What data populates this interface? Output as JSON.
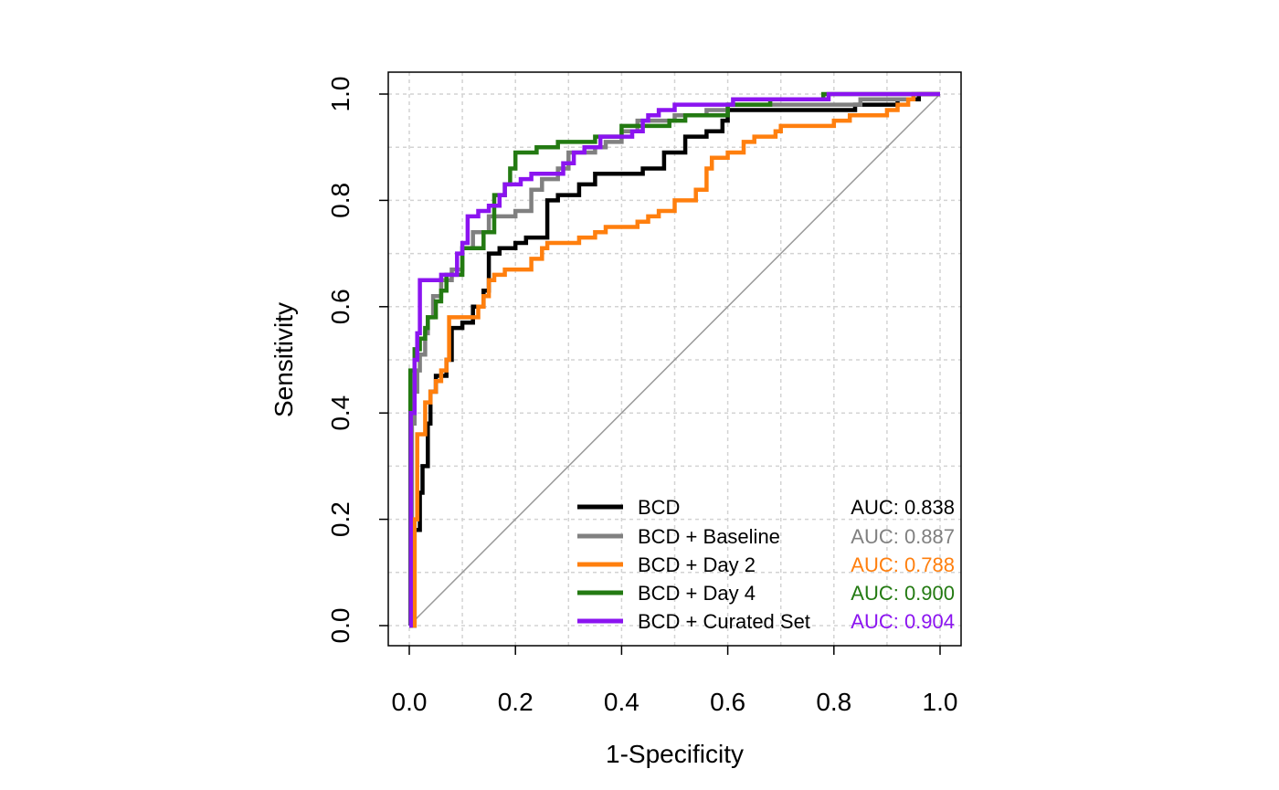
{
  "chart_data": {
    "type": "line",
    "xlabel": "1-Specificity",
    "ylabel": "Sensitivity",
    "xlim": [
      0,
      1
    ],
    "ylim": [
      0,
      1
    ],
    "x_ticks": [
      "0.0",
      "0.2",
      "0.4",
      "0.6",
      "0.8",
      "1.0"
    ],
    "y_ticks": [
      "0.0",
      "0.2",
      "0.4",
      "0.6",
      "0.8",
      "1.0"
    ],
    "grid": true,
    "legend_position": "bottom-right",
    "reference_line": {
      "from": [
        0,
        0
      ],
      "to": [
        1,
        1
      ],
      "color": "#999999"
    },
    "series": [
      {
        "name": "BCD",
        "auc_label": "AUC: 0.838",
        "color": "#000000",
        "points": [
          [
            0,
            0
          ],
          [
            0.01,
            0
          ],
          [
            0.01,
            0.18
          ],
          [
            0.02,
            0.18
          ],
          [
            0.02,
            0.25
          ],
          [
            0.025,
            0.25
          ],
          [
            0.025,
            0.3
          ],
          [
            0.035,
            0.3
          ],
          [
            0.035,
            0.38
          ],
          [
            0.04,
            0.38
          ],
          [
            0.04,
            0.44
          ],
          [
            0.05,
            0.44
          ],
          [
            0.05,
            0.47
          ],
          [
            0.07,
            0.47
          ],
          [
            0.07,
            0.5
          ],
          [
            0.08,
            0.5
          ],
          [
            0.08,
            0.56
          ],
          [
            0.1,
            0.56
          ],
          [
            0.1,
            0.57
          ],
          [
            0.12,
            0.57
          ],
          [
            0.12,
            0.6
          ],
          [
            0.14,
            0.6
          ],
          [
            0.14,
            0.63
          ],
          [
            0.15,
            0.63
          ],
          [
            0.15,
            0.7
          ],
          [
            0.17,
            0.7
          ],
          [
            0.17,
            0.71
          ],
          [
            0.2,
            0.71
          ],
          [
            0.2,
            0.72
          ],
          [
            0.22,
            0.72
          ],
          [
            0.22,
            0.73
          ],
          [
            0.26,
            0.73
          ],
          [
            0.26,
            0.8
          ],
          [
            0.28,
            0.8
          ],
          [
            0.28,
            0.81
          ],
          [
            0.32,
            0.81
          ],
          [
            0.32,
            0.83
          ],
          [
            0.35,
            0.83
          ],
          [
            0.35,
            0.85
          ],
          [
            0.44,
            0.85
          ],
          [
            0.44,
            0.86
          ],
          [
            0.48,
            0.86
          ],
          [
            0.48,
            0.89
          ],
          [
            0.52,
            0.89
          ],
          [
            0.52,
            0.92
          ],
          [
            0.56,
            0.92
          ],
          [
            0.56,
            0.93
          ],
          [
            0.59,
            0.93
          ],
          [
            0.59,
            0.95
          ],
          [
            0.6,
            0.95
          ],
          [
            0.6,
            0.97
          ],
          [
            0.84,
            0.97
          ],
          [
            0.84,
            0.98
          ],
          [
            0.92,
            0.98
          ],
          [
            0.92,
            0.99
          ],
          [
            0.96,
            0.99
          ],
          [
            0.96,
            1
          ],
          [
            1,
            1
          ]
        ]
      },
      {
        "name": "BCD + Baseline",
        "auc_label": "AUC: 0.887",
        "color": "#808080",
        "points": [
          [
            0,
            0
          ],
          [
            0.005,
            0
          ],
          [
            0.005,
            0.38
          ],
          [
            0.01,
            0.38
          ],
          [
            0.01,
            0.44
          ],
          [
            0.015,
            0.44
          ],
          [
            0.015,
            0.48
          ],
          [
            0.02,
            0.48
          ],
          [
            0.02,
            0.51
          ],
          [
            0.03,
            0.51
          ],
          [
            0.03,
            0.55
          ],
          [
            0.035,
            0.55
          ],
          [
            0.035,
            0.58
          ],
          [
            0.045,
            0.58
          ],
          [
            0.045,
            0.62
          ],
          [
            0.06,
            0.62
          ],
          [
            0.06,
            0.65
          ],
          [
            0.08,
            0.65
          ],
          [
            0.08,
            0.67
          ],
          [
            0.1,
            0.67
          ],
          [
            0.1,
            0.71
          ],
          [
            0.12,
            0.71
          ],
          [
            0.12,
            0.74
          ],
          [
            0.15,
            0.74
          ],
          [
            0.15,
            0.77
          ],
          [
            0.2,
            0.77
          ],
          [
            0.2,
            0.78
          ],
          [
            0.23,
            0.78
          ],
          [
            0.23,
            0.82
          ],
          [
            0.25,
            0.82
          ],
          [
            0.25,
            0.84
          ],
          [
            0.28,
            0.84
          ],
          [
            0.28,
            0.86
          ],
          [
            0.3,
            0.86
          ],
          [
            0.3,
            0.89
          ],
          [
            0.35,
            0.89
          ],
          [
            0.35,
            0.9
          ],
          [
            0.37,
            0.9
          ],
          [
            0.37,
            0.91
          ],
          [
            0.4,
            0.91
          ],
          [
            0.4,
            0.93
          ],
          [
            0.43,
            0.93
          ],
          [
            0.43,
            0.95
          ],
          [
            0.5,
            0.95
          ],
          [
            0.5,
            0.96
          ],
          [
            0.56,
            0.96
          ],
          [
            0.56,
            0.97
          ],
          [
            0.6,
            0.97
          ],
          [
            0.6,
            0.98
          ],
          [
            0.85,
            0.98
          ],
          [
            0.85,
            0.99
          ],
          [
            0.95,
            0.99
          ],
          [
            0.95,
            1
          ],
          [
            1,
            1
          ]
        ]
      },
      {
        "name": "BCD + Day 2",
        "auc_label": "AUC: 0.788",
        "color": "#FF7F0E",
        "points": [
          [
            0,
            0
          ],
          [
            0.01,
            0
          ],
          [
            0.01,
            0.2
          ],
          [
            0.015,
            0.2
          ],
          [
            0.015,
            0.36
          ],
          [
            0.03,
            0.36
          ],
          [
            0.03,
            0.42
          ],
          [
            0.04,
            0.42
          ],
          [
            0.04,
            0.44
          ],
          [
            0.05,
            0.44
          ],
          [
            0.05,
            0.46
          ],
          [
            0.06,
            0.46
          ],
          [
            0.06,
            0.48
          ],
          [
            0.07,
            0.48
          ],
          [
            0.07,
            0.5
          ],
          [
            0.075,
            0.5
          ],
          [
            0.075,
            0.58
          ],
          [
            0.13,
            0.58
          ],
          [
            0.13,
            0.6
          ],
          [
            0.14,
            0.6
          ],
          [
            0.14,
            0.62
          ],
          [
            0.15,
            0.62
          ],
          [
            0.15,
            0.65
          ],
          [
            0.16,
            0.65
          ],
          [
            0.16,
            0.66
          ],
          [
            0.18,
            0.66
          ],
          [
            0.18,
            0.67
          ],
          [
            0.23,
            0.67
          ],
          [
            0.23,
            0.69
          ],
          [
            0.25,
            0.69
          ],
          [
            0.25,
            0.71
          ],
          [
            0.26,
            0.71
          ],
          [
            0.26,
            0.72
          ],
          [
            0.32,
            0.72
          ],
          [
            0.32,
            0.73
          ],
          [
            0.35,
            0.73
          ],
          [
            0.35,
            0.74
          ],
          [
            0.37,
            0.74
          ],
          [
            0.37,
            0.75
          ],
          [
            0.43,
            0.75
          ],
          [
            0.43,
            0.76
          ],
          [
            0.45,
            0.76
          ],
          [
            0.45,
            0.77
          ],
          [
            0.47,
            0.77
          ],
          [
            0.47,
            0.78
          ],
          [
            0.5,
            0.78
          ],
          [
            0.5,
            0.8
          ],
          [
            0.54,
            0.8
          ],
          [
            0.54,
            0.82
          ],
          [
            0.56,
            0.82
          ],
          [
            0.56,
            0.86
          ],
          [
            0.57,
            0.86
          ],
          [
            0.57,
            0.88
          ],
          [
            0.6,
            0.88
          ],
          [
            0.6,
            0.89
          ],
          [
            0.63,
            0.89
          ],
          [
            0.63,
            0.91
          ],
          [
            0.65,
            0.91
          ],
          [
            0.65,
            0.92
          ],
          [
            0.69,
            0.92
          ],
          [
            0.69,
            0.93
          ],
          [
            0.7,
            0.93
          ],
          [
            0.7,
            0.94
          ],
          [
            0.8,
            0.94
          ],
          [
            0.8,
            0.95
          ],
          [
            0.83,
            0.95
          ],
          [
            0.83,
            0.96
          ],
          [
            0.9,
            0.96
          ],
          [
            0.9,
            0.97
          ],
          [
            0.92,
            0.97
          ],
          [
            0.92,
            0.98
          ],
          [
            0.94,
            0.98
          ],
          [
            0.94,
            0.99
          ],
          [
            0.95,
            0.99
          ],
          [
            0.95,
            1
          ],
          [
            1,
            1
          ]
        ]
      },
      {
        "name": "BCD + Day 4",
        "auc_label": "AUC: 0.900",
        "color": "#237A12",
        "points": [
          [
            0,
            0
          ],
          [
            0.002,
            0
          ],
          [
            0.002,
            0.48
          ],
          [
            0.01,
            0.48
          ],
          [
            0.01,
            0.52
          ],
          [
            0.02,
            0.52
          ],
          [
            0.02,
            0.54
          ],
          [
            0.03,
            0.54
          ],
          [
            0.03,
            0.56
          ],
          [
            0.035,
            0.56
          ],
          [
            0.035,
            0.58
          ],
          [
            0.05,
            0.58
          ],
          [
            0.05,
            0.61
          ],
          [
            0.06,
            0.61
          ],
          [
            0.06,
            0.63
          ],
          [
            0.07,
            0.63
          ],
          [
            0.07,
            0.66
          ],
          [
            0.1,
            0.66
          ],
          [
            0.1,
            0.71
          ],
          [
            0.14,
            0.71
          ],
          [
            0.14,
            0.74
          ],
          [
            0.16,
            0.74
          ],
          [
            0.16,
            0.81
          ],
          [
            0.18,
            0.81
          ],
          [
            0.18,
            0.83
          ],
          [
            0.19,
            0.83
          ],
          [
            0.19,
            0.86
          ],
          [
            0.2,
            0.86
          ],
          [
            0.2,
            0.89
          ],
          [
            0.24,
            0.89
          ],
          [
            0.24,
            0.9
          ],
          [
            0.28,
            0.9
          ],
          [
            0.28,
            0.91
          ],
          [
            0.35,
            0.91
          ],
          [
            0.35,
            0.92
          ],
          [
            0.4,
            0.92
          ],
          [
            0.4,
            0.94
          ],
          [
            0.49,
            0.94
          ],
          [
            0.49,
            0.95
          ],
          [
            0.52,
            0.95
          ],
          [
            0.52,
            0.96
          ],
          [
            0.6,
            0.96
          ],
          [
            0.6,
            0.98
          ],
          [
            0.68,
            0.98
          ],
          [
            0.68,
            0.99
          ],
          [
            0.78,
            0.99
          ],
          [
            0.78,
            1
          ],
          [
            1,
            1
          ]
        ]
      },
      {
        "name": "BCD + Curated Set",
        "auc_label": "AUC: 0.904",
        "color": "#8B14F0",
        "points": [
          [
            0,
            0
          ],
          [
            0.003,
            0
          ],
          [
            0.003,
            0.4
          ],
          [
            0.01,
            0.4
          ],
          [
            0.01,
            0.5
          ],
          [
            0.015,
            0.5
          ],
          [
            0.015,
            0.55
          ],
          [
            0.02,
            0.55
          ],
          [
            0.02,
            0.65
          ],
          [
            0.05,
            0.65
          ],
          [
            0.05,
            0.65
          ],
          [
            0.06,
            0.65
          ],
          [
            0.06,
            0.66
          ],
          [
            0.09,
            0.66
          ],
          [
            0.09,
            0.7
          ],
          [
            0.1,
            0.7
          ],
          [
            0.1,
            0.72
          ],
          [
            0.11,
            0.72
          ],
          [
            0.11,
            0.77
          ],
          [
            0.13,
            0.77
          ],
          [
            0.13,
            0.78
          ],
          [
            0.15,
            0.78
          ],
          [
            0.15,
            0.79
          ],
          [
            0.17,
            0.79
          ],
          [
            0.17,
            0.81
          ],
          [
            0.18,
            0.81
          ],
          [
            0.18,
            0.83
          ],
          [
            0.21,
            0.83
          ],
          [
            0.21,
            0.84
          ],
          [
            0.23,
            0.84
          ],
          [
            0.23,
            0.85
          ],
          [
            0.29,
            0.85
          ],
          [
            0.29,
            0.87
          ],
          [
            0.31,
            0.87
          ],
          [
            0.31,
            0.89
          ],
          [
            0.33,
            0.89
          ],
          [
            0.33,
            0.9
          ],
          [
            0.36,
            0.9
          ],
          [
            0.36,
            0.92
          ],
          [
            0.42,
            0.92
          ],
          [
            0.42,
            0.93
          ],
          [
            0.44,
            0.93
          ],
          [
            0.44,
            0.95
          ],
          [
            0.45,
            0.95
          ],
          [
            0.45,
            0.96
          ],
          [
            0.47,
            0.96
          ],
          [
            0.47,
            0.97
          ],
          [
            0.5,
            0.97
          ],
          [
            0.5,
            0.98
          ],
          [
            0.61,
            0.98
          ],
          [
            0.61,
            0.99
          ],
          [
            0.79,
            0.99
          ],
          [
            0.79,
            1
          ],
          [
            1,
            1
          ]
        ]
      }
    ]
  }
}
